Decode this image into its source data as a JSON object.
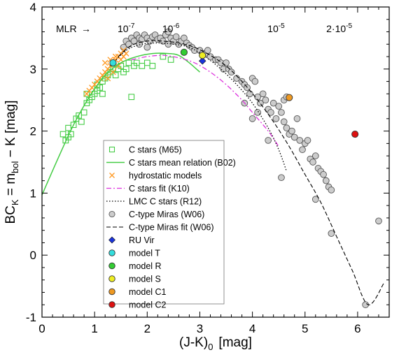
{
  "chart_data": {
    "type": "scatter",
    "xlabel": "(J-K)",
    "xlabel_sub": "0",
    "xlabel_unit": "[mag]",
    "ylabel": "BC",
    "ylabel_sub": "K",
    "ylabel_eq": " = m",
    "ylabel_sub2": "bol",
    "ylabel_rest": " − K   [mag]",
    "xlim": [
      0,
      6.6
    ],
    "ylim": [
      -1,
      4
    ],
    "xticks": [
      0,
      1,
      2,
      3,
      4,
      5,
      6
    ],
    "yticks": [
      -1,
      0,
      1,
      2,
      3,
      4
    ],
    "xtick_labels": [
      "0",
      "1",
      "2",
      "3",
      "4",
      "5",
      "6"
    ],
    "ytick_labels": [
      "-1",
      "0",
      "1",
      "2",
      "3",
      "4"
    ],
    "mlr": {
      "label": "MLR",
      "arrow": "→",
      "marks": [
        {
          "base": "10",
          "exp": "-7",
          "x": 1.6
        },
        {
          "base": "10",
          "exp": "-6",
          "x": 2.45
        },
        {
          "base": "10",
          "exp": "-5",
          "x": 4.45
        },
        {
          "base": "2·10",
          "exp": "-5",
          "x": 5.65
        }
      ]
    },
    "series": [
      {
        "name": "C stars (M65)",
        "marker": "open-square",
        "color": "#44cc44",
        "points": [
          [
            0.4,
            1.95
          ],
          [
            0.45,
            1.85
          ],
          [
            0.5,
            1.9
          ],
          [
            0.5,
            2.05
          ],
          [
            0.55,
            1.95
          ],
          [
            0.6,
            2.1
          ],
          [
            0.65,
            2.2
          ],
          [
            0.7,
            2.25
          ],
          [
            0.75,
            2.15
          ],
          [
            0.8,
            2.3
          ],
          [
            0.85,
            2.45
          ],
          [
            0.85,
            2.6
          ],
          [
            0.9,
            2.5
          ],
          [
            0.95,
            2.55
          ],
          [
            1.0,
            2.6
          ],
          [
            1.05,
            2.65
          ],
          [
            1.05,
            2.75
          ],
          [
            1.1,
            2.7
          ],
          [
            1.15,
            2.8
          ],
          [
            1.15,
            2.6
          ],
          [
            1.2,
            2.85
          ],
          [
            1.25,
            2.9
          ],
          [
            1.3,
            2.95
          ],
          [
            1.35,
            3.0
          ],
          [
            1.4,
            2.9
          ],
          [
            1.45,
            3.0
          ],
          [
            1.5,
            3.05
          ],
          [
            1.55,
            2.95
          ],
          [
            1.6,
            3.0
          ],
          [
            1.65,
            3.1
          ],
          [
            1.7,
            2.55
          ],
          [
            1.75,
            3.05
          ],
          [
            1.8,
            3.1
          ],
          [
            1.9,
            3.05
          ],
          [
            2.0,
            3.1
          ],
          [
            2.1,
            3.05
          ],
          [
            2.3,
            3.2
          ],
          [
            2.45,
            3.15
          ]
        ]
      },
      {
        "name": "C stars mean relation (B02)",
        "marker": "solid-line",
        "color": "#44cc44",
        "points": [
          [
            0.0,
            0.97
          ],
          [
            0.3,
            1.55
          ],
          [
            0.6,
            2.1
          ],
          [
            0.9,
            2.55
          ],
          [
            1.2,
            2.9
          ],
          [
            1.5,
            3.1
          ],
          [
            1.8,
            3.2
          ],
          [
            2.1,
            3.25
          ],
          [
            2.4,
            3.25
          ],
          [
            2.6,
            3.22
          ],
          [
            2.8,
            3.1
          ],
          [
            3.0,
            2.95
          ]
        ]
      },
      {
        "name": "hydrostatic models",
        "marker": "x",
        "color": "#ff9922",
        "points": [
          [
            0.85,
            2.6
          ],
          [
            0.9,
            2.65
          ],
          [
            0.95,
            2.7
          ],
          [
            1.0,
            2.75
          ],
          [
            1.05,
            2.8
          ],
          [
            1.1,
            2.85
          ],
          [
            1.15,
            2.9
          ],
          [
            1.2,
            2.95
          ],
          [
            1.25,
            3.0
          ],
          [
            1.3,
            3.05
          ],
          [
            1.35,
            3.1
          ],
          [
            1.4,
            3.15
          ],
          [
            1.45,
            3.2
          ],
          [
            1.5,
            3.25
          ],
          [
            1.55,
            3.3
          ],
          [
            1.2,
            3.1
          ],
          [
            1.3,
            3.15
          ],
          [
            1.4,
            3.2
          ],
          [
            1.5,
            3.15
          ],
          [
            1.35,
            2.95
          ],
          [
            1.45,
            3.05
          ],
          [
            1.25,
            2.85
          ],
          [
            1.55,
            3.2
          ],
          [
            1.6,
            3.25
          ]
        ]
      },
      {
        "name": "C stars fit (K10)",
        "marker": "dash-dot",
        "color": "#dd33dd",
        "points": [
          [
            1.7,
            3.15
          ],
          [
            2.0,
            3.2
          ],
          [
            2.3,
            3.22
          ],
          [
            2.6,
            3.18
          ],
          [
            2.9,
            3.1
          ],
          [
            3.2,
            2.95
          ],
          [
            3.5,
            2.75
          ],
          [
            3.8,
            2.5
          ],
          [
            4.0,
            2.3
          ],
          [
            4.3,
            2.0
          ],
          [
            4.5,
            1.75
          ]
        ]
      },
      {
        "name": "LMC C stars (R12)",
        "marker": "dotted",
        "color": "#000000",
        "points": [
          [
            1.3,
            3.05
          ],
          [
            1.6,
            3.3
          ],
          [
            1.9,
            3.4
          ],
          [
            2.2,
            3.42
          ],
          [
            2.5,
            3.4
          ],
          [
            2.8,
            3.35
          ],
          [
            3.1,
            3.2
          ],
          [
            3.4,
            3.0
          ],
          [
            3.7,
            2.75
          ],
          [
            4.0,
            2.45
          ],
          [
            4.3,
            2.05
          ],
          [
            4.5,
            1.7
          ],
          [
            4.65,
            1.35
          ]
        ]
      },
      {
        "name": "C-type Miras (W06)",
        "marker": "open-circle",
        "color": "#999999",
        "points": [
          [
            1.55,
            3.35
          ],
          [
            1.6,
            3.45
          ],
          [
            1.65,
            3.4
          ],
          [
            1.7,
            3.5
          ],
          [
            1.75,
            3.45
          ],
          [
            1.8,
            3.55
          ],
          [
            1.85,
            3.5
          ],
          [
            1.9,
            3.48
          ],
          [
            1.95,
            3.55
          ],
          [
            2.0,
            3.5
          ],
          [
            2.05,
            3.45
          ],
          [
            2.1,
            3.52
          ],
          [
            2.15,
            3.55
          ],
          [
            2.2,
            3.48
          ],
          [
            2.25,
            3.5
          ],
          [
            2.3,
            3.45
          ],
          [
            2.35,
            3.55
          ],
          [
            2.4,
            3.6
          ],
          [
            2.45,
            3.5
          ],
          [
            2.5,
            3.45
          ],
          [
            2.55,
            3.52
          ],
          [
            2.6,
            3.4
          ],
          [
            2.65,
            3.45
          ],
          [
            2.7,
            3.5
          ],
          [
            2.75,
            3.42
          ],
          [
            2.8,
            3.38
          ],
          [
            2.85,
            3.35
          ],
          [
            2.9,
            3.3
          ],
          [
            3.0,
            3.3
          ],
          [
            3.05,
            3.25
          ],
          [
            3.1,
            3.25
          ],
          [
            3.15,
            3.3
          ],
          [
            3.2,
            3.2
          ],
          [
            3.3,
            3.15
          ],
          [
            3.35,
            3.15
          ],
          [
            3.4,
            3.1
          ],
          [
            3.45,
            3.0
          ],
          [
            3.5,
            3.1
          ],
          [
            3.55,
            3.0
          ],
          [
            3.6,
            2.95
          ],
          [
            3.7,
            2.85
          ],
          [
            3.8,
            2.8
          ],
          [
            3.85,
            2.75
          ],
          [
            3.9,
            2.7
          ],
          [
            3.95,
            2.6
          ],
          [
            4.0,
            2.85
          ],
          [
            4.05,
            2.8
          ],
          [
            4.1,
            2.55
          ],
          [
            4.15,
            2.45
          ],
          [
            4.2,
            2.6
          ],
          [
            4.25,
            2.5
          ],
          [
            4.3,
            2.35
          ],
          [
            4.35,
            2.3
          ],
          [
            4.4,
            2.45
          ],
          [
            4.45,
            2.2
          ],
          [
            4.5,
            2.4
          ],
          [
            4.55,
            2.3
          ],
          [
            4.6,
            2.15
          ],
          [
            4.65,
            2.05
          ],
          [
            4.7,
            1.95
          ],
          [
            4.75,
            2.0
          ],
          [
            4.8,
            1.9
          ],
          [
            4.85,
            2.2
          ],
          [
            4.9,
            1.85
          ],
          [
            4.95,
            1.7
          ],
          [
            5.0,
            1.8
          ],
          [
            5.05,
            1.85
          ],
          [
            5.1,
            1.55
          ],
          [
            5.15,
            1.5
          ],
          [
            5.2,
            1.6
          ],
          [
            5.25,
            1.4
          ],
          [
            5.3,
            1.35
          ],
          [
            5.35,
            1.3
          ],
          [
            5.4,
            1.2
          ],
          [
            5.45,
            1.1
          ],
          [
            5.5,
            1.05
          ],
          [
            5.2,
            0.9
          ],
          [
            5.5,
            0.35
          ],
          [
            4.55,
            1.25
          ],
          [
            4.0,
            2.2
          ],
          [
            4.1,
            2.3
          ],
          [
            3.85,
            2.45
          ],
          [
            4.3,
            1.85
          ],
          [
            4.6,
            2.5
          ],
          [
            4.65,
            2.55
          ],
          [
            6.4,
            0.55
          ],
          [
            6.15,
            -0.8
          ],
          [
            2.0,
            3.35
          ],
          [
            1.85,
            3.4
          ],
          [
            2.4,
            3.4
          ]
        ]
      },
      {
        "name": "C-type Miras fit (W06)",
        "marker": "dashed",
        "color": "#000000",
        "points": [
          [
            1.45,
            3.2
          ],
          [
            1.7,
            3.38
          ],
          [
            2.0,
            3.45
          ],
          [
            2.3,
            3.45
          ],
          [
            2.6,
            3.42
          ],
          [
            2.9,
            3.35
          ],
          [
            3.2,
            3.22
          ],
          [
            3.5,
            3.05
          ],
          [
            3.8,
            2.8
          ],
          [
            4.1,
            2.5
          ],
          [
            4.4,
            2.15
          ],
          [
            4.7,
            1.75
          ],
          [
            5.0,
            1.3
          ],
          [
            5.3,
            0.85
          ],
          [
            5.6,
            0.3
          ],
          [
            5.9,
            -0.25
          ],
          [
            6.2,
            -0.8
          ],
          [
            6.5,
            -0.45
          ]
        ]
      },
      {
        "name": "RU Vir",
        "marker": "filled-diamond",
        "color": "#1a33dd",
        "points": [
          [
            3.05,
            3.13
          ]
        ]
      },
      {
        "name": "model T",
        "marker": "filled-circle",
        "color": "#33dddd",
        "points": [
          [
            1.35,
            3.1
          ]
        ]
      },
      {
        "name": "model R",
        "marker": "filled-circle",
        "color": "#33cc33",
        "points": [
          [
            2.7,
            3.27
          ]
        ]
      },
      {
        "name": "model S",
        "marker": "filled-circle",
        "color": "#eeee22",
        "points": [
          [
            3.05,
            3.22
          ]
        ]
      },
      {
        "name": "model C1",
        "marker": "filled-circle",
        "color": "#ee9922",
        "points": [
          [
            4.7,
            2.54
          ]
        ]
      },
      {
        "name": "model C2",
        "marker": "filled-circle",
        "color": "#dd1111",
        "points": [
          [
            5.95,
            1.95
          ]
        ]
      }
    ]
  }
}
